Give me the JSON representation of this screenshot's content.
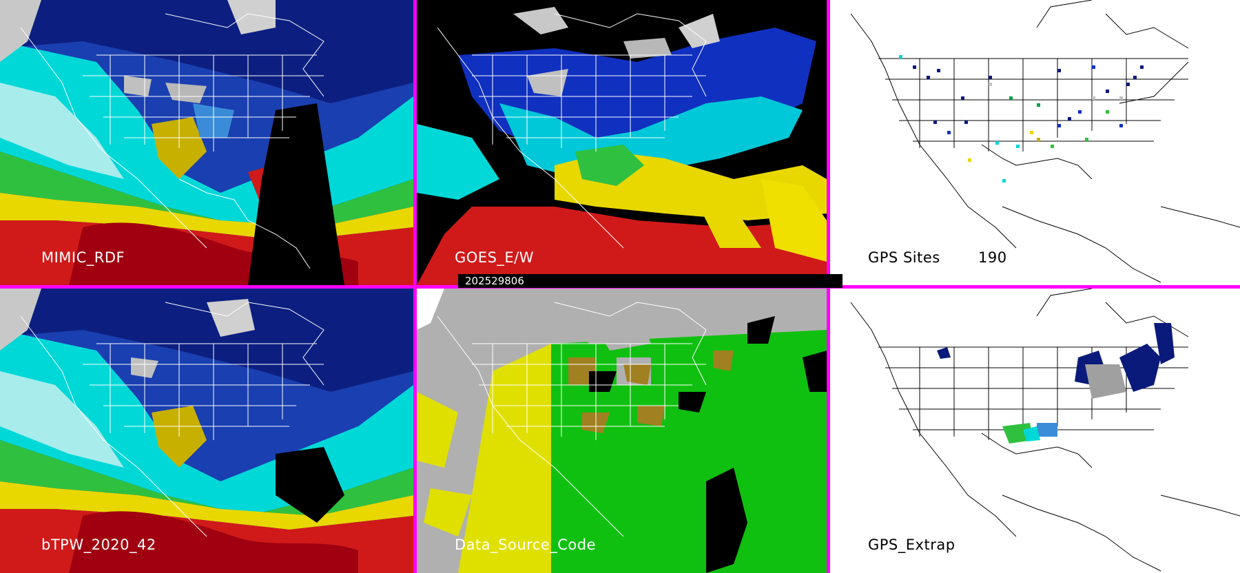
{
  "panels": [
    {
      "id": "mimic",
      "label": "MIMIC_RDF",
      "style": "satellite",
      "label_color": "#ffffff"
    },
    {
      "id": "goes",
      "label": "GOES_E/W",
      "style": "satellite-black",
      "label_color": "#ffffff"
    },
    {
      "id": "gps-sites",
      "label": "GPS Sites",
      "count": "190",
      "style": "white-map",
      "label_color": "#000000"
    },
    {
      "id": "btpw",
      "label": "bTPW_2020_42",
      "style": "satellite",
      "label_color": "#ffffff"
    },
    {
      "id": "data-source",
      "label": "Data_Source_Code",
      "style": "source-code",
      "label_color": "#ffffff"
    },
    {
      "id": "gps-extrap",
      "label": "GPS_Extrap",
      "style": "white-map",
      "label_color": "#000000"
    }
  ],
  "timestamp": "202529806",
  "colors": {
    "divider": "#ff00ff",
    "tpw_scale": [
      "#ffffff",
      "#c0c0c0",
      "#0a1a7a",
      "#1030c0",
      "#3a8cd8",
      "#00e6e6",
      "#a0e8e8",
      "#00a040",
      "#30d030",
      "#c8b000",
      "#f0e000",
      "#e02020",
      "#b00010",
      "#8040b0"
    ],
    "source_gray": "#b0b0b0",
    "source_green": "#10c010",
    "source_yellow": "#e0e000",
    "source_olive": "#a08020"
  }
}
